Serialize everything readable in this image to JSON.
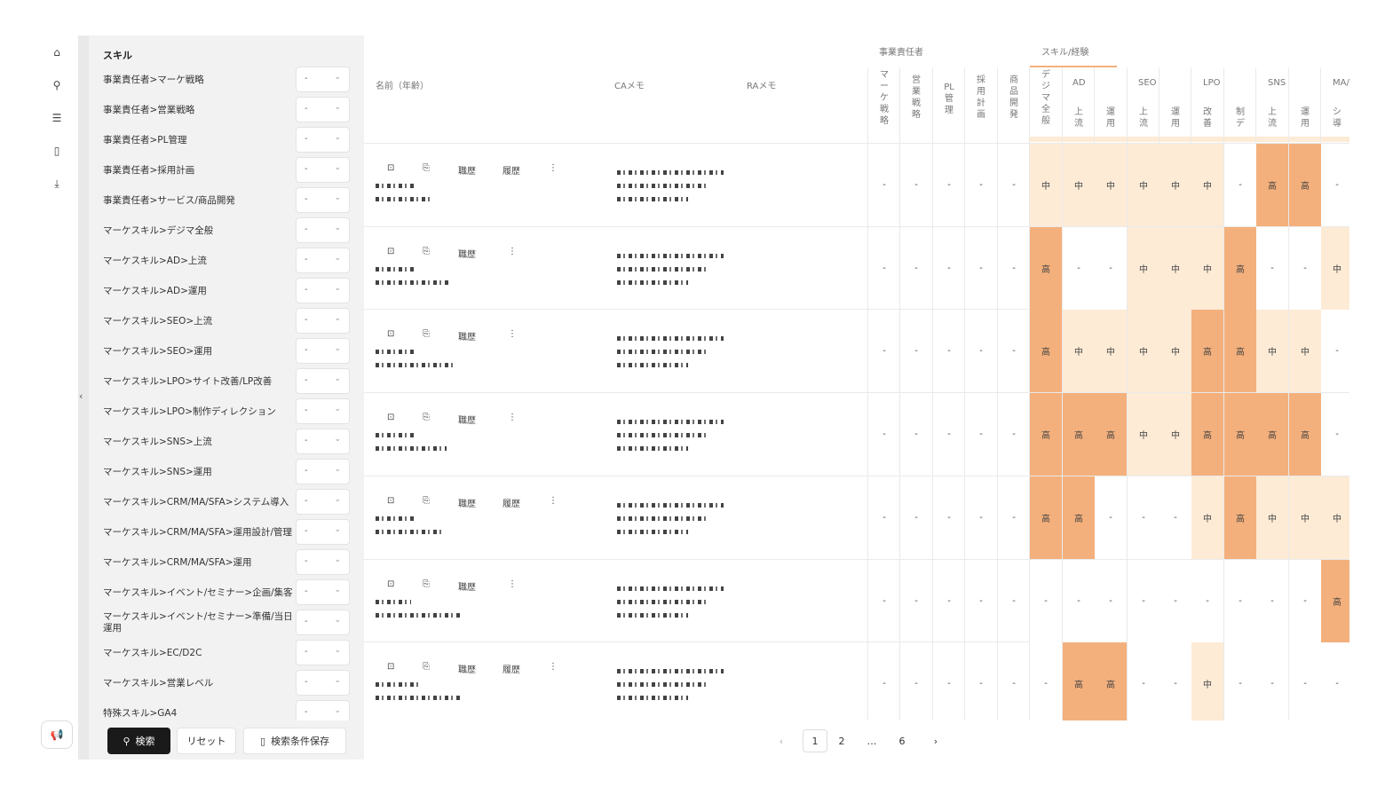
{
  "nav": {
    "icons": [
      "home-icon",
      "search-icon",
      "list-icon",
      "bookmark-icon",
      "download-icon"
    ],
    "feedback_icon": "megaphone-icon"
  },
  "filter": {
    "title": "スキル",
    "rows": [
      {
        "label": "事業責任者>マーケ戦略",
        "value": "-"
      },
      {
        "label": "事業責任者>営業戦略",
        "value": "-"
      },
      {
        "label": "事業責任者>PL管理",
        "value": "-"
      },
      {
        "label": "事業責任者>採用計画",
        "value": "-"
      },
      {
        "label": "事業責任者>サービス/商品開発",
        "value": "-"
      },
      {
        "label": "マーケスキル>デジマ全般",
        "value": "-"
      },
      {
        "label": "マーケスキル>AD>上流",
        "value": "-"
      },
      {
        "label": "マーケスキル>AD>運用",
        "value": "-"
      },
      {
        "label": "マーケスキル>SEO>上流",
        "value": "-"
      },
      {
        "label": "マーケスキル>SEO>運用",
        "value": "-"
      },
      {
        "label": "マーケスキル>LPO>サイト改善/LP改善",
        "value": "-"
      },
      {
        "label": "マーケスキル>LPO>制作ディレクション",
        "value": "-"
      },
      {
        "label": "マーケスキル>SNS>上流",
        "value": "-"
      },
      {
        "label": "マーケスキル>SNS>運用",
        "value": "-"
      },
      {
        "label": "マーケスキル>CRM/MA/SFA>システム導入",
        "value": "-"
      },
      {
        "label": "マーケスキル>CRM/MA/SFA>運用設計/管理",
        "value": "-"
      },
      {
        "label": "マーケスキル>CRM/MA/SFA>運用",
        "value": "-"
      },
      {
        "label": "マーケスキル>イベント/セミナー>企画/集客",
        "value": "-"
      },
      {
        "label": "マーケスキル>イベント/セミナー>準備/当日運用",
        "value": "-"
      },
      {
        "label": "マーケスキル>EC/D2C",
        "value": "-"
      },
      {
        "label": "マーケスキル>営業レベル",
        "value": "-"
      },
      {
        "label": "特殊スキル>GA4",
        "value": "-"
      }
    ],
    "search_label": "検索",
    "reset_label": "リセット",
    "save_label": "検索条件保存"
  },
  "table": {
    "col_name": "名前（年齢）",
    "col_ca": "CAメモ",
    "col_ra": "RAメモ",
    "group_exec": "事業責任者",
    "group_skill": "スキル/経験",
    "exec_cols": [
      "マ\nー\nケ\n戦\n略",
      "営\n業\n戦\n略",
      "PL\n管\n理",
      "採\n用\n計\n画",
      "商\n品\n開\n発"
    ],
    "digima_col": "デ\nジ\nマ\n全\n般",
    "subgroups": [
      "AD",
      "SEO",
      "LPO",
      "SNS",
      "MA/"
    ],
    "sub_cols": [
      "上\n流",
      "運\n用",
      "上\n流",
      "運\n用",
      "改\n善",
      "制\nデ",
      "上\n流",
      "運\n用",
      "シ\n導"
    ],
    "action_labels": {
      "career": "職歴",
      "history": "履歴",
      "more": "⋮"
    },
    "rows": [
      {
        "has_history": true,
        "exec": [
          "-",
          "-",
          "-",
          "-",
          "-"
        ],
        "skills": [
          "中",
          "中",
          "中",
          "中",
          "中",
          "中",
          "-",
          "高",
          "高",
          "-"
        ]
      },
      {
        "has_history": false,
        "exec": [
          "-",
          "-",
          "-",
          "-",
          "-"
        ],
        "skills": [
          "高",
          "-",
          "-",
          "中",
          "中",
          "中",
          "高",
          "-",
          "-",
          "中"
        ]
      },
      {
        "has_history": false,
        "exec": [
          "-",
          "-",
          "-",
          "-",
          "-"
        ],
        "skills": [
          "高",
          "中",
          "中",
          "中",
          "中",
          "高",
          "高",
          "中",
          "中",
          "-"
        ]
      },
      {
        "has_history": false,
        "exec": [
          "-",
          "-",
          "-",
          "-",
          "-"
        ],
        "skills": [
          "高",
          "高",
          "高",
          "中",
          "中",
          "高",
          "高",
          "高",
          "高",
          "-"
        ]
      },
      {
        "has_history": true,
        "exec": [
          "-",
          "-",
          "-",
          "-",
          "-"
        ],
        "skills": [
          "高",
          "高",
          "-",
          "-",
          "-",
          "中",
          "高",
          "中",
          "中",
          "中"
        ]
      },
      {
        "has_history": false,
        "exec": [
          "-",
          "-",
          "-",
          "-",
          "-"
        ],
        "skills": [
          "-",
          "-",
          "-",
          "-",
          "-",
          "-",
          "-",
          "-",
          "-",
          "高"
        ]
      },
      {
        "has_history": true,
        "exec": [
          "-",
          "-",
          "-",
          "-",
          "-"
        ],
        "skills": [
          "-",
          "高",
          "高",
          "-",
          "-",
          "中",
          "-",
          "-",
          "-",
          "-"
        ]
      }
    ]
  },
  "pagination": {
    "prev": "‹",
    "pages": [
      "1",
      "2",
      "…",
      "6"
    ],
    "current": "1",
    "next": "›"
  },
  "colors": {
    "high": "#f4b07c",
    "mid": "#fdebd6",
    "none": "#ffffff",
    "accent": "#f4b07c"
  }
}
